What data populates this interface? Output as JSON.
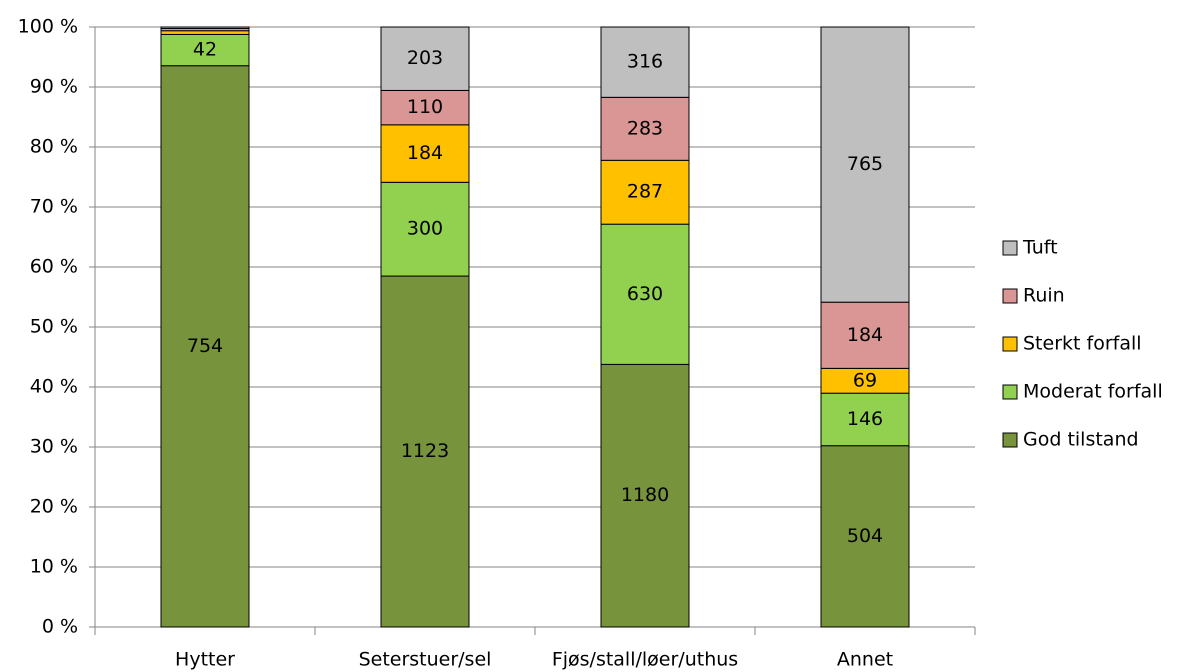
{
  "chart_data": {
    "type": "bar",
    "stacking": "percent",
    "categories": [
      "Hytter",
      "Seterstuer/sel",
      "Fjøs/stall/løer/uthus",
      "Annet"
    ],
    "series": [
      {
        "name": "God tilstand",
        "color": "#77933c",
        "values": [
          754,
          1123,
          1180,
          504
        ]
      },
      {
        "name": "Moderat forfall",
        "color": "#92d050",
        "values": [
          42,
          300,
          630,
          146
        ]
      },
      {
        "name": "Sterkt forfall",
        "color": "#ffc000",
        "values": [
          5,
          184,
          287,
          69
        ]
      },
      {
        "name": "Ruin",
        "color": "#d99694",
        "values": [
          3,
          110,
          283,
          184
        ]
      },
      {
        "name": "Tuft",
        "color": "#bfbfbf",
        "values": [
          2,
          203,
          316,
          765
        ]
      }
    ],
    "ylim": [
      0,
      100
    ],
    "yticks": [
      {
        "value": 0,
        "label": "0 %"
      },
      {
        "value": 10,
        "label": "10 %"
      },
      {
        "value": 20,
        "label": "20 %"
      },
      {
        "value": 30,
        "label": "30 %"
      },
      {
        "value": 40,
        "label": "40 %"
      },
      {
        "value": 50,
        "label": "50 %"
      },
      {
        "value": 60,
        "label": "60 %"
      },
      {
        "value": 70,
        "label": "70 %"
      },
      {
        "value": 80,
        "label": "80 %"
      },
      {
        "value": 90,
        "label": "90 %"
      },
      {
        "value": 100,
        "label": "100 %"
      }
    ],
    "grid": true,
    "legend": "right"
  }
}
